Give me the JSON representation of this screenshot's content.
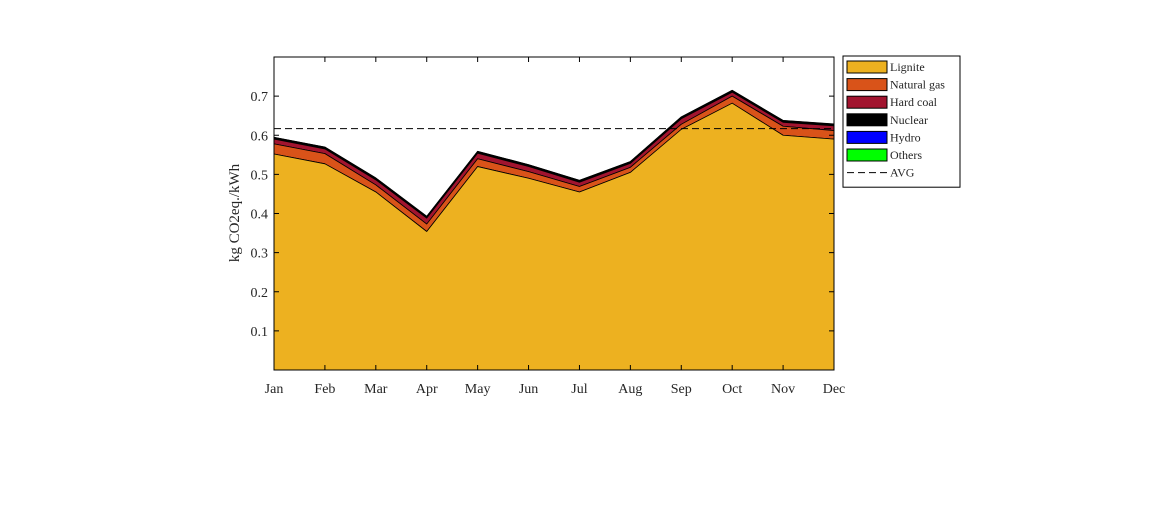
{
  "chart_data": {
    "type": "area",
    "stacked": true,
    "ylabel": "kg CO2eq./kWh",
    "xlabel": "",
    "ylim": [
      0,
      0.8
    ],
    "yticks": [
      0.1,
      0.2,
      0.3,
      0.4,
      0.5,
      0.6,
      0.7
    ],
    "categories": [
      "Jan",
      "Feb",
      "Mar",
      "Apr",
      "May",
      "Jun",
      "Jul",
      "Aug",
      "Sep",
      "Oct",
      "Nov",
      "Dec"
    ],
    "series": [
      {
        "name": "Lignite",
        "color": "#EDB120",
        "values": [
          0.552,
          0.527,
          0.455,
          0.354,
          0.52,
          0.49,
          0.455,
          0.505,
          0.615,
          0.682,
          0.6,
          0.59
        ]
      },
      {
        "name": "Natural gas",
        "color": "#D95319",
        "values": [
          0.026,
          0.026,
          0.018,
          0.019,
          0.02,
          0.017,
          0.014,
          0.013,
          0.013,
          0.018,
          0.023,
          0.022
        ]
      },
      {
        "name": "Hard coal",
        "color": "#A2142F",
        "values": [
          0.012,
          0.012,
          0.013,
          0.015,
          0.014,
          0.013,
          0.011,
          0.01,
          0.014,
          0.01,
          0.01,
          0.012
        ]
      },
      {
        "name": "Nuclear",
        "color": "#000000",
        "values": [
          0.004,
          0.004,
          0.004,
          0.004,
          0.004,
          0.004,
          0.004,
          0.004,
          0.004,
          0.004,
          0.004,
          0.004
        ]
      },
      {
        "name": "Hydro",
        "color": "#0000FF",
        "values": [
          0.0005,
          0.0005,
          0.0005,
          0.0005,
          0.0005,
          0.0005,
          0.0005,
          0.0005,
          0.0005,
          0.0005,
          0.0005,
          0.0005
        ]
      },
      {
        "name": "Others",
        "color": "#00FF00",
        "values": [
          0.0005,
          0.0005,
          0.0005,
          0.0005,
          0.0005,
          0.0005,
          0.0005,
          0.0005,
          0.0005,
          0.0005,
          0.0005,
          0.0005
        ]
      }
    ],
    "reference_line": {
      "name": "AVG",
      "value": 0.617,
      "style": "dashed",
      "color": "#000000"
    },
    "legend": {
      "position": "outside-right",
      "entries": [
        "Lignite",
        "Natural gas",
        "Hard coal",
        "Nuclear",
        "Hydro",
        "Others",
        "AVG"
      ]
    },
    "grid": false
  }
}
